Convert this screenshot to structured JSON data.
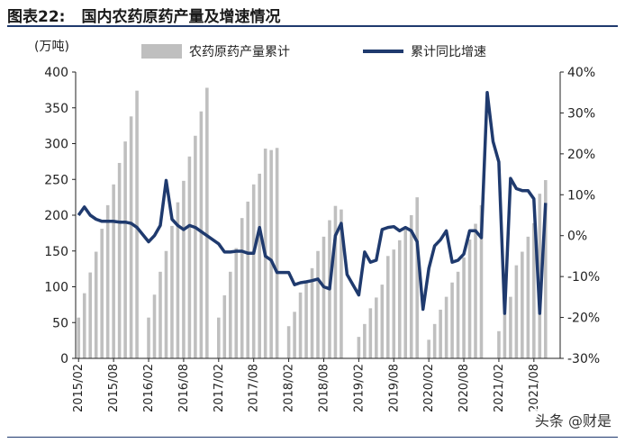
{
  "figure": {
    "number": "图表22:",
    "title": "国内农药原药产量及增速情况"
  },
  "watermark": "头条 @财是",
  "chart_data": {
    "type": "bar+line",
    "y_left_unit": "(万吨)",
    "y_left_ticks": [
      "0",
      "50",
      "100",
      "150",
      "200",
      "250",
      "300",
      "350",
      "400"
    ],
    "y_right_ticks": [
      "-30%",
      "-20%",
      "-10%",
      "0%",
      "10%",
      "20%",
      "30%",
      "40%"
    ],
    "ylim_left": [
      0,
      400
    ],
    "ylim_right": [
      -30,
      40
    ],
    "x_tick_labels": [
      "2015/02",
      "2015/08",
      "2016/02",
      "2016/08",
      "2017/02",
      "2017/08",
      "2018/02",
      "2018/08",
      "2019/02",
      "2019/08",
      "2020/02",
      "2020/08",
      "2021/02",
      "2021/08"
    ],
    "x_tick_index": [
      0,
      6,
      12,
      18,
      24,
      30,
      36,
      42,
      48,
      54,
      60,
      66,
      72,
      78
    ],
    "series": [
      {
        "name": "农药原药产量累计",
        "color": "#bfbfbf",
        "type": "bar",
        "values": [
          57,
          91,
          120,
          149,
          181,
          214,
          243,
          273,
          303,
          338,
          374,
          null,
          57,
          89,
          121,
          150,
          185,
          218,
          248,
          282,
          311,
          345,
          378,
          null,
          57,
          88,
          121,
          154,
          196,
          219,
          243,
          258,
          293,
          291,
          294,
          null,
          45,
          65,
          92,
          105,
          126,
          150,
          170,
          193,
          213,
          208,
          null,
          null,
          30,
          48,
          70,
          85,
          103,
          143,
          152,
          165,
          180,
          200,
          225,
          null,
          26,
          48,
          68,
          86,
          106,
          121,
          141,
          166,
          188,
          214,
          null,
          null,
          38,
          62,
          86,
          130,
          149,
          170,
          189,
          230,
          249
        ]
      },
      {
        "name": "累计同比增速",
        "color": "#1f3a6e",
        "type": "line",
        "values": [
          5,
          7,
          5,
          4,
          3.5,
          3.5,
          3.5,
          3.3,
          3.3,
          3,
          2,
          null,
          -1.5,
          0,
          2.5,
          13.5,
          4,
          2.5,
          1.5,
          2.5,
          2,
          1,
          null,
          null,
          -2,
          -4,
          -4,
          -3.8,
          -3.8,
          -4.3,
          -4.3,
          2,
          -5,
          -6,
          -9,
          -9,
          -9,
          -12,
          -11.5,
          -11.3,
          -11,
          -10.6,
          -12.5,
          -13,
          0,
          3,
          -9.5,
          -12,
          -14.5,
          -4,
          -6.5,
          -6,
          1.5,
          2,
          2.2,
          1.2,
          2,
          1.2,
          -1.5,
          -18,
          -8,
          -2.5,
          -1,
          1.2,
          -6.5,
          -6,
          -4.5,
          1.2,
          1.2,
          -0.5,
          35,
          23,
          18,
          -19,
          14,
          11.5,
          11,
          11,
          9,
          -19,
          8
        ]
      }
    ]
  }
}
